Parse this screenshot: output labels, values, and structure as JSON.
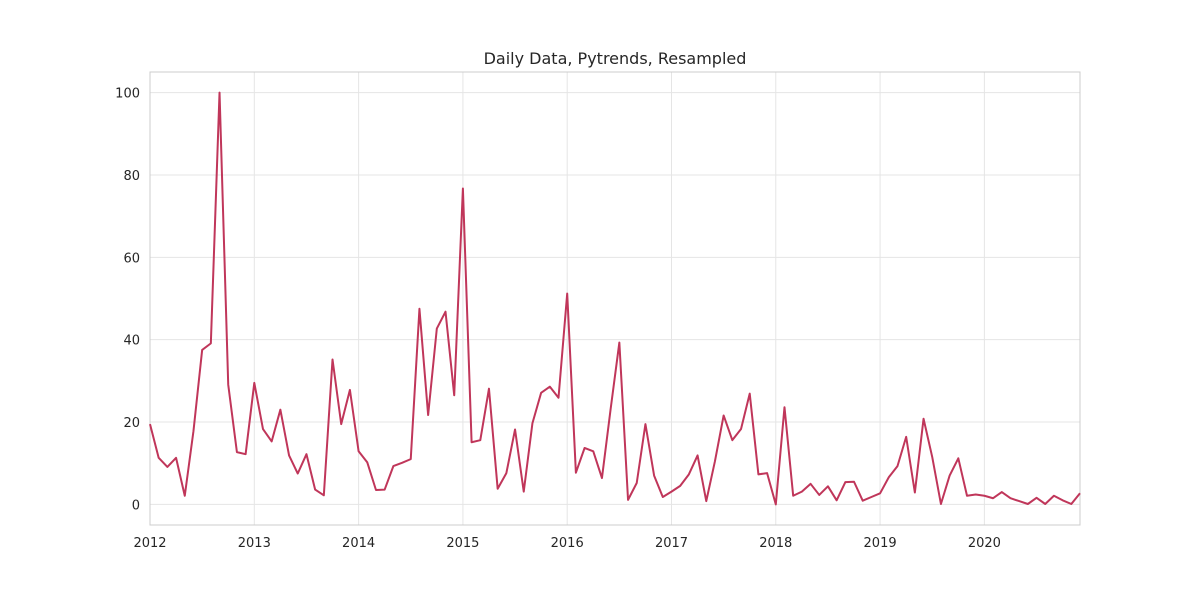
{
  "chart_data": {
    "type": "line",
    "title": "Daily Data, Pytrends, Resampled",
    "xlabel": "",
    "ylabel": "",
    "x_tick_labels": [
      "2012",
      "2013",
      "2014",
      "2015",
      "2016",
      "2017",
      "2018",
      "2019",
      "2020"
    ],
    "y_tick_labels": [
      "0",
      "20",
      "40",
      "60",
      "80",
      "100"
    ],
    "ylim": [
      -5,
      105
    ],
    "xlim": [
      "2012-01",
      "2020-12"
    ],
    "grid": true,
    "legend": "none",
    "line_color": "#c0365a",
    "series": [
      {
        "x": [
          "2012-01",
          "2012-02",
          "2012-03",
          "2012-04",
          "2012-05",
          "2012-06",
          "2012-07",
          "2012-08",
          "2012-09",
          "2012-10",
          "2012-11",
          "2012-12",
          "2013-01",
          "2013-02",
          "2013-03",
          "2013-04",
          "2013-05",
          "2013-06",
          "2013-07",
          "2013-08",
          "2013-09",
          "2013-10",
          "2013-11",
          "2013-12",
          "2014-01",
          "2014-02",
          "2014-03",
          "2014-04",
          "2014-05",
          "2014-06",
          "2014-07",
          "2014-08",
          "2014-09",
          "2014-10",
          "2014-11",
          "2014-12",
          "2015-01",
          "2015-02",
          "2015-03",
          "2015-04",
          "2015-05",
          "2015-06",
          "2015-07",
          "2015-08",
          "2015-09",
          "2015-10",
          "2015-11",
          "2015-12",
          "2016-01",
          "2016-02",
          "2016-03",
          "2016-04",
          "2016-05",
          "2016-06",
          "2016-07",
          "2016-08",
          "2016-09",
          "2016-10",
          "2016-11",
          "2016-12",
          "2017-01",
          "2017-02",
          "2017-03",
          "2017-04",
          "2017-05",
          "2017-06",
          "2017-07",
          "2017-08",
          "2017-09",
          "2017-10",
          "2017-11",
          "2017-12",
          "2018-01",
          "2018-02",
          "2018-03",
          "2018-04",
          "2018-05",
          "2018-06",
          "2018-07",
          "2018-08",
          "2018-09",
          "2018-10",
          "2018-11",
          "2018-12",
          "2019-01",
          "2019-02",
          "2019-03",
          "2019-04",
          "2019-05",
          "2019-06",
          "2019-07",
          "2019-08",
          "2019-09",
          "2019-10",
          "2019-11",
          "2019-12",
          "2020-01",
          "2020-02",
          "2020-03",
          "2020-04",
          "2020-05",
          "2020-06",
          "2020-07",
          "2020-08",
          "2020-09",
          "2020-10",
          "2020-11",
          "2020-12"
        ],
        "values": [
          19.5,
          11.3,
          9.1,
          11.3,
          2.1,
          17.8,
          37.5,
          39.1,
          100,
          29.1,
          12.7,
          12.2,
          29.5,
          18.3,
          15.3,
          23.0,
          11.9,
          7.5,
          12.2,
          3.6,
          2.2,
          35.2,
          19.5,
          27.8,
          12.9,
          10.2,
          3.5,
          3.6,
          9.3,
          10.1,
          11.0,
          47.5,
          21.7,
          42.7,
          46.8,
          26.5,
          76.7,
          15.1,
          15.6,
          28.1,
          3.8,
          7.6,
          18.2,
          3.1,
          19.7,
          27.1,
          28.6,
          25.9,
          51.2,
          7.7,
          13.7,
          12.9,
          6.4,
          23.2,
          39.3,
          1.1,
          5.2,
          19.5,
          7.0,
          1.8,
          3.1,
          4.5,
          7.3,
          11.9,
          0.8,
          10.5,
          21.6,
          15.6,
          18.3,
          26.9,
          7.3,
          7.6,
          0.0,
          23.6,
          2.1,
          3.1,
          5.0,
          2.3,
          4.4,
          1.0,
          5.4,
          5.5,
          0.9,
          1.8,
          2.7,
          6.6,
          9.3,
          16.4,
          2.9,
          20.8,
          11.5,
          0.1,
          7.0,
          11.2,
          2.1,
          2.4,
          2.1,
          1.5,
          3.0,
          1.5,
          0.8,
          0.1,
          1.6,
          0.1,
          2.1,
          1.0,
          0.1,
          2.7
        ]
      }
    ]
  }
}
